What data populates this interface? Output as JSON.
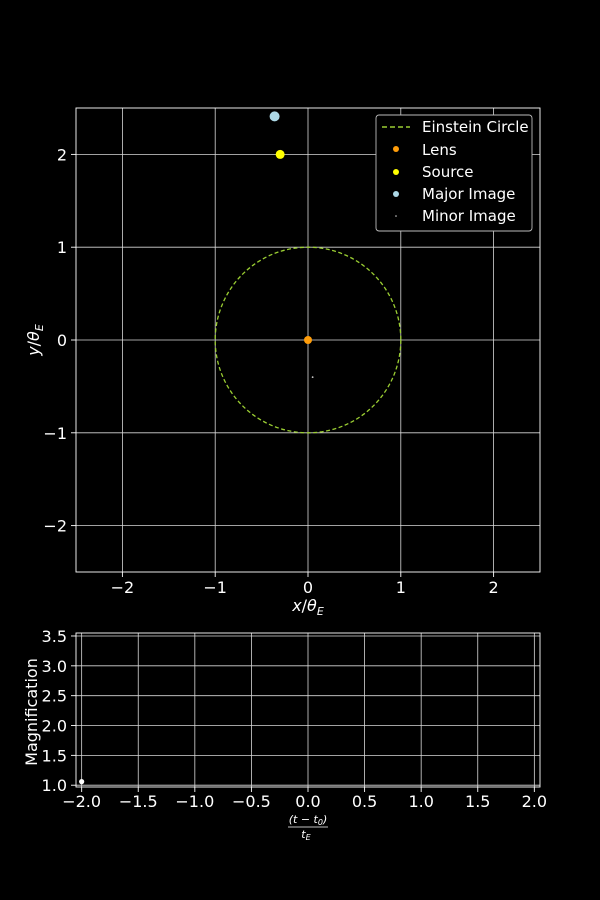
{
  "chart_data": [
    {
      "type": "scatter",
      "xlabel_var": "x",
      "ylabel_var": "y",
      "label_sub": "E",
      "xlim": [
        -2.5,
        2.5
      ],
      "ylim": [
        -2.5,
        2.5
      ],
      "xticks": [
        -2,
        -1,
        0,
        1,
        2
      ],
      "yticks": [
        -2,
        -1,
        0,
        1,
        2
      ],
      "grid": true,
      "legend_position": "top-right",
      "einstein_circle": {
        "name": "Einstein Circle",
        "center": [
          0,
          0
        ],
        "radius": 1,
        "color": "#9acd32",
        "style": "dashed"
      },
      "series": [
        {
          "name": "Lens",
          "color": "#ff9d0a",
          "points": [
            [
              0,
              0
            ]
          ]
        },
        {
          "name": "Source",
          "color": "#ffff00",
          "points": [
            [
              -0.3,
              2.0
            ]
          ]
        },
        {
          "name": "Major Image",
          "color": "#add8e6",
          "points": [
            [
              -0.36,
              2.41
            ]
          ]
        },
        {
          "name": "Minor Image",
          "color": "#d3d3d3",
          "points": [
            [
              0.05,
              -0.4
            ]
          ]
        }
      ]
    },
    {
      "type": "line",
      "ylabel": "Magnification",
      "xlabel_numerator": "(t − t",
      "xlabel_numerator_sub": "0",
      "xlabel_numerator_close": ")",
      "xlabel_denominator": "t",
      "xlabel_denominator_sub": "E",
      "xlim": [
        -2.05,
        2.05
      ],
      "ylim": [
        0.97,
        3.55
      ],
      "xticks": [
        "−2.0",
        "−1.5",
        "−1.0",
        "−0.5",
        "0.0",
        "0.5",
        "1.0",
        "1.5",
        "2.0"
      ],
      "xtick_values": [
        -2.0,
        -1.5,
        -1.0,
        -0.5,
        0.0,
        0.5,
        1.0,
        1.5,
        2.0
      ],
      "yticks": [
        "1.0",
        "1.5",
        "2.0",
        "2.5",
        "3.0",
        "3.5"
      ],
      "ytick_values": [
        1.0,
        1.5,
        2.0,
        2.5,
        3.0,
        3.5
      ],
      "grid": true,
      "series": [
        {
          "color": "#ffffff",
          "points": [
            [
              -2.0,
              1.06
            ]
          ]
        }
      ]
    }
  ]
}
